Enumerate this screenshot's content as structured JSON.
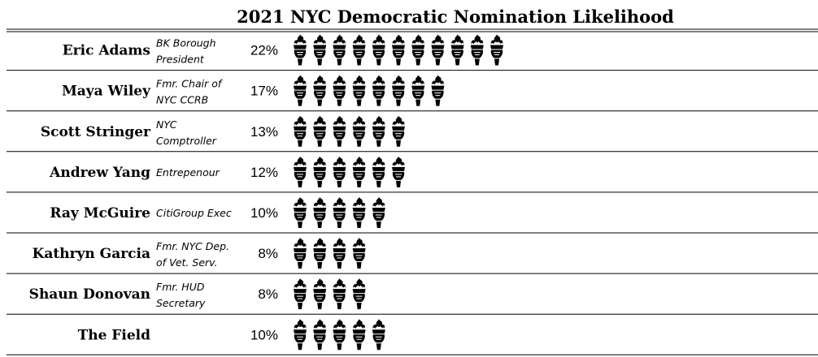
{
  "chart_data": {
    "type": "bar",
    "title": "2021 NYC Democratic Nomination Likelihood",
    "icon": "torch-icon",
    "categories": [
      "Eric Adams",
      "Maya Wiley",
      "Scott Stringer",
      "Andrew Yang",
      "Ray McGuire",
      "Kathryn Garcia",
      "Shaun Donovan",
      "The Field"
    ],
    "descriptions": [
      [
        "BK Borough",
        "President"
      ],
      [
        "Fmr. Chair of",
        "NYC CCRB"
      ],
      [
        "NYC",
        "Comptroller"
      ],
      [
        "Entrepenour"
      ],
      [
        "CitiGroup Exec"
      ],
      [
        "Fmr. NYC Dep.",
        "of Vet. Serv."
      ],
      [
        "Fmr. HUD",
        "Secretary"
      ],
      []
    ],
    "values": [
      22,
      17,
      13,
      12,
      10,
      8,
      8,
      10
    ],
    "value_labels": [
      "22%",
      "17%",
      "13%",
      "12%",
      "10%",
      "8%",
      "8%",
      "10%"
    ],
    "units_per_icon": 2,
    "colors": {
      "ink": "#000000",
      "background": "#ffffff"
    }
  }
}
